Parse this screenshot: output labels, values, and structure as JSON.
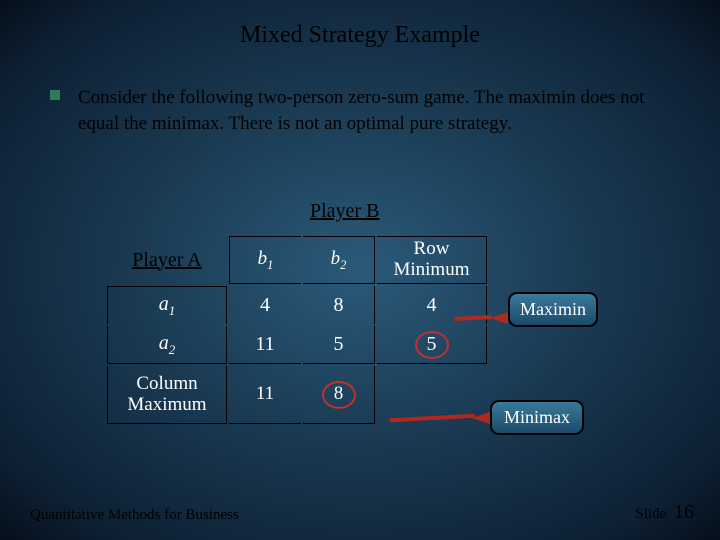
{
  "title": "Mixed Strategy Example",
  "body": "Consider the following two-person zero-sum game. The maximin does not equal the minimax.  There is not an optimal pure strategy.",
  "playerB": "Player B",
  "headers": {
    "playerA": "Player A",
    "b1": "b",
    "b1_sub": "1",
    "b2": "b",
    "b2_sub": "2",
    "rowMin": "Row Minimum"
  },
  "rows": {
    "a1": "a",
    "a1_sub": "1",
    "a2": "a",
    "a2_sub": "2",
    "colMax": "Column Maximum"
  },
  "cells": {
    "r1c1": "4",
    "r1c2": "8",
    "r1c3": "4",
    "r2c1": "11",
    "r2c2": "5",
    "r2c3": "5",
    "r3c1": "11",
    "r3c2": "8"
  },
  "callouts": {
    "maximin": "Maximin",
    "minimax": "Minimax"
  },
  "footer": {
    "left": "Quantitative Methods for Business",
    "rightLabel": "Slide",
    "slideNum": "16"
  },
  "colors": {
    "accent_red": "#c4302b",
    "bullet_green": "#2e7d5a"
  }
}
